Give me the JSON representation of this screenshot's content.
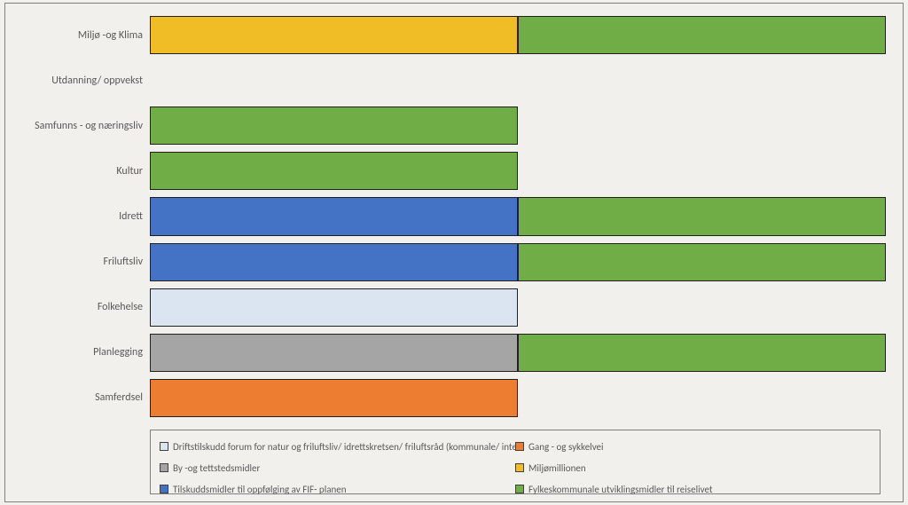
{
  "chart": {
    "type": "stacked-bar-horizontal",
    "background_color": "#f2f0ed",
    "border_color": "#808080",
    "bar_border_color": "#202020",
    "xmax": 2,
    "categories": [
      "Miljø -og Klima",
      "Utdanning/ oppvekst",
      "Samfunns - og næringsliv",
      "Kultur",
      "Idrett",
      "Friluftsliv",
      "Folkehelse",
      "Planlegging",
      "Samferdsel"
    ],
    "series": [
      {
        "key": "s0",
        "label": "Driftstilskudd forum for natur og friluftsliv/ idrettskretsen/ friluftsråd (kommunale/ interkommunale)",
        "color": "#dbe5f1"
      },
      {
        "key": "s1",
        "label": "Gang - og sykkelvei",
        "color": "#ed7d31"
      },
      {
        "key": "s2",
        "label": "By -og tettstedsmidler",
        "color": "#a5a5a5"
      },
      {
        "key": "s3",
        "label": "Miljømillionen",
        "color": "#f0bd27"
      },
      {
        "key": "s4",
        "label": "Tilskuddsmidler til oppfølging av FIF- planen",
        "color": "#4472c4"
      },
      {
        "key": "s5",
        "label": "Fylkeskommunale utviklingsmidler til  reiselivet",
        "color": "#70ad47"
      }
    ],
    "data": {
      "Miljø -og Klima": {
        "s3": 1,
        "s5": 1
      },
      "Utdanning/ oppvekst": {},
      "Samfunns - og næringsliv": {
        "s5": 1
      },
      "Kultur": {
        "s5": 1
      },
      "Idrett": {
        "s4": 1,
        "s5": 1
      },
      "Friluftsliv": {
        "s4": 1,
        "s5": 1
      },
      "Folkehelse": {
        "s0": 1
      },
      "Planlegging": {
        "s2": 1,
        "s5": 1
      },
      "Samferdsel": {
        "s1": 1
      }
    },
    "label_fontsize": 12,
    "legend_fontsize": 11,
    "label_color": "#595959"
  }
}
